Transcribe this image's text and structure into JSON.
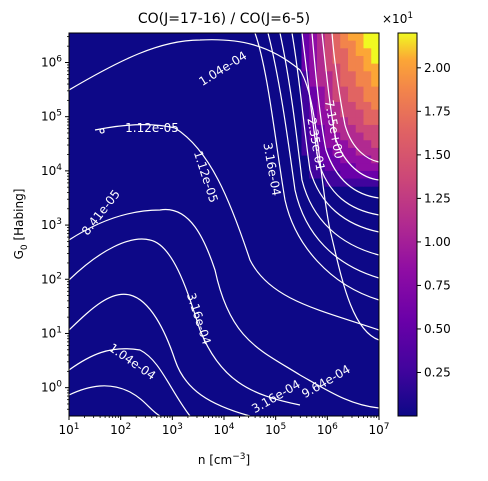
{
  "chart_data": {
    "type": "heatmap",
    "title": "CO(J=17-16) / CO(J=6-5)",
    "xlabel": "n [cm$^{-3}$]",
    "ylabel": "G$_0$ [Habing]",
    "x_scale": "log",
    "y_scale": "log",
    "xlim": [
      10,
      10000000
    ],
    "ylim": [
      0.3,
      3500000
    ],
    "x_ticks": [
      "10^1",
      "10^2",
      "10^3",
      "10^4",
      "10^5",
      "10^6",
      "10^7"
    ],
    "y_ticks": [
      "10^0",
      "10^1",
      "10^2",
      "10^3",
      "10^4",
      "10^5",
      "10^6"
    ],
    "colorbar": {
      "colormap": "plasma",
      "range": [
        0,
        22
      ],
      "ticks": [
        "0.25",
        "0.50",
        "0.75",
        "1.00",
        "1.25",
        "1.50",
        "1.75",
        "2.00"
      ],
      "multiplier": "×10^1"
    },
    "contour_labels": [
      "1.04e-04",
      "1.12e-05",
      "1.12e-05",
      "8.41e-05",
      "3.16e-04",
      "1.04e-04",
      "3.16e-04",
      "9.64e-04",
      "7.15e+00",
      "2.35e-01",
      "3.16e-04"
    ]
  },
  "colors": {
    "background": "#0d0887",
    "contour": "#ffffff"
  }
}
